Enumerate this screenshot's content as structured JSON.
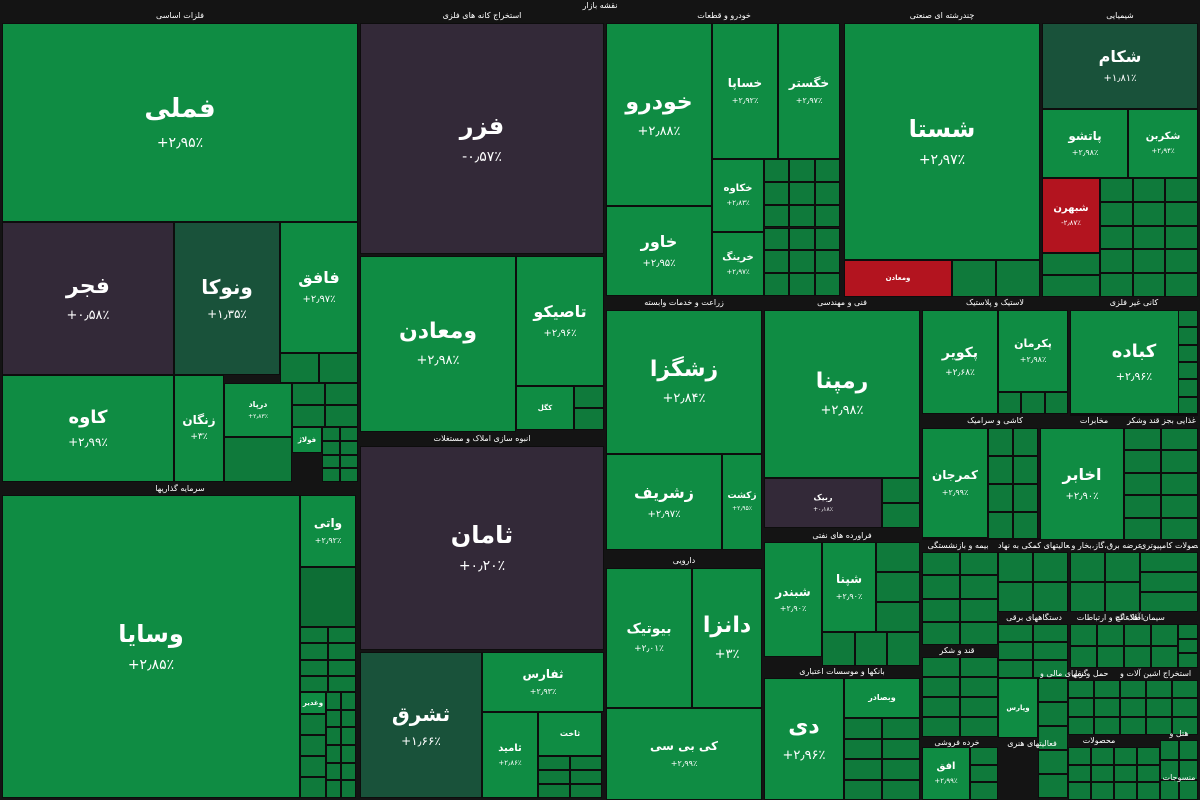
{
  "title": "نقشه بازار",
  "sections": [
    {
      "name": "فلزات اساسی"
    },
    {
      "name": "استخراج کانه های فلزی"
    },
    {
      "name": "خودرو و قطعات"
    },
    {
      "name": "چندرشته ای صنعتی"
    },
    {
      "name": "شیمیایی"
    },
    {
      "name": "زراعت و خدمات وابسته"
    },
    {
      "name": "فنی و مهندسی"
    },
    {
      "name": "لاستیک و پلاستیک"
    },
    {
      "name": "کانی غیر فلزی"
    },
    {
      "name": "انبوه سازی املاک و مستغلات"
    },
    {
      "name": "سرمایه گذاریها"
    },
    {
      "name": "دارویی"
    },
    {
      "name": "فراورده های نفتی"
    },
    {
      "name": "کاشی و سرامیک"
    },
    {
      "name": "مخابرات"
    },
    {
      "name": "غذایی بجز قند وشکر"
    },
    {
      "name": "بانکها و موسسات اعتباری"
    },
    {
      "name": "بیمه و بازنشستگی"
    },
    {
      "name": "فعالیتهای کمکی به نهاد"
    },
    {
      "name": "عرضه برق،گاز،بخار و"
    },
    {
      "name": "محصولات کامپیوتری"
    },
    {
      "name": "قند و شکر"
    },
    {
      "name": "خرده فروشی"
    },
    {
      "name": "فعالیتهای هنری"
    },
    {
      "name": "اطلاعات و ارتباطات"
    },
    {
      "name": "دستگاههای برقی"
    },
    {
      "name": "واسطه گریهای مالی و"
    },
    {
      "name": "حمل و نقل"
    },
    {
      "name": "سیمان آهک گچ"
    },
    {
      "name": "ماشین آلات و"
    },
    {
      "name": "استخراج"
    },
    {
      "name": "محصولات"
    },
    {
      "name": "هتل و"
    },
    {
      "name": "منسوجات"
    }
  ],
  "tiles": [
    {
      "name": "فملی",
      "change": "+۲٫۹۵٪"
    },
    {
      "name": "فجر",
      "change": "+۰٫۵۸٪"
    },
    {
      "name": "ونوکا",
      "change": "+۱٫۳۵٪"
    },
    {
      "name": "فافق",
      "change": "+۲٫۹۷٪"
    },
    {
      "name": "کاوه",
      "change": "+۲٫۹۹٪"
    },
    {
      "name": "زنگان",
      "change": "+۳٪"
    },
    {
      "name": "درپاد",
      "change": "+۲٫۸۳٪"
    },
    {
      "name": "فولاژ",
      "change": ""
    },
    {
      "name": "فزر",
      "change": "-۰٫۵۷٪"
    },
    {
      "name": "ومعادن",
      "change": "+۲٫۹۸٪"
    },
    {
      "name": "تاصیکو",
      "change": "+۲٫۹۶٪"
    },
    {
      "name": "کگل",
      "change": ""
    },
    {
      "name": "ثامان",
      "change": "+۰٫۲۰٪"
    },
    {
      "name": "ثشرق",
      "change": "+۱٫۶۶٪"
    },
    {
      "name": "ثفارس",
      "change": "+۲٫۹۳٪"
    },
    {
      "name": "ثامید",
      "change": "+۲٫۸۶٪"
    },
    {
      "name": "ثاخت",
      "change": ""
    },
    {
      "name": "وسایا",
      "change": "+۲٫۸۵٪"
    },
    {
      "name": "واتی",
      "change": "+۲٫۹۲٪"
    },
    {
      "name": "وغدیر",
      "change": ""
    },
    {
      "name": "خودرو",
      "change": "+۲٫۸۸٪"
    },
    {
      "name": "خساپا",
      "change": "+۲٫۹۲٪"
    },
    {
      "name": "خگستر",
      "change": "+۲٫۹۷٪"
    },
    {
      "name": "خاور",
      "change": "+۲٫۹۵٪"
    },
    {
      "name": "خکاوه",
      "change": "+۲٫۸۳٪"
    },
    {
      "name": "خرینگ",
      "change": "+۲٫۹۷٪"
    },
    {
      "name": "شستا",
      "change": "+۲٫۹۷٪"
    },
    {
      "name": "ومعادن",
      "change": ""
    },
    {
      "name": "شکام",
      "change": "+۱٫۸۱٪"
    },
    {
      "name": "پاتشو",
      "change": "+۲٫۹۸٪"
    },
    {
      "name": "شکربن",
      "change": "+۲٫۹۴٪"
    },
    {
      "name": "شبهرن",
      "change": "-۲٫۸۷٪"
    },
    {
      "name": "زشگزا",
      "change": "+۲٫۸۴٪"
    },
    {
      "name": "زشریف",
      "change": "+۲٫۹۷٪"
    },
    {
      "name": "زکشت",
      "change": "+۲٫۹۵٪"
    },
    {
      "name": "رمپنا",
      "change": "+۲٫۹۸٪"
    },
    {
      "name": "ربیک",
      "change": "+۰٫۱۸٪"
    },
    {
      "name": "پکویر",
      "change": "+۲٫۶۸٪"
    },
    {
      "name": "پکرمان",
      "change": "+۲٫۹۸٪"
    },
    {
      "name": "کباده",
      "change": "+۲٫۹۶٪"
    },
    {
      "name": "کمرجان",
      "change": "+۲٫۹۹٪"
    },
    {
      "name": "اخابر",
      "change": "+۲٫۹۰٪"
    },
    {
      "name": "دانزا",
      "change": "+۳٪"
    },
    {
      "name": "بیوتیک",
      "change": "+۲٫۰۱٪"
    },
    {
      "name": "کی بی سی",
      "change": "+۲٫۹۹٪"
    },
    {
      "name": "شبندر",
      "change": "+۲٫۹۰٪"
    },
    {
      "name": "شپنا",
      "change": "+۲٫۹۰٪"
    },
    {
      "name": "دی",
      "change": "+۲٫۹۶٪"
    },
    {
      "name": "وبصادر",
      "change": ""
    },
    {
      "name": "افق",
      "change": "+۲٫۹۹٪"
    },
    {
      "name": "وپارس",
      "change": ""
    }
  ]
}
